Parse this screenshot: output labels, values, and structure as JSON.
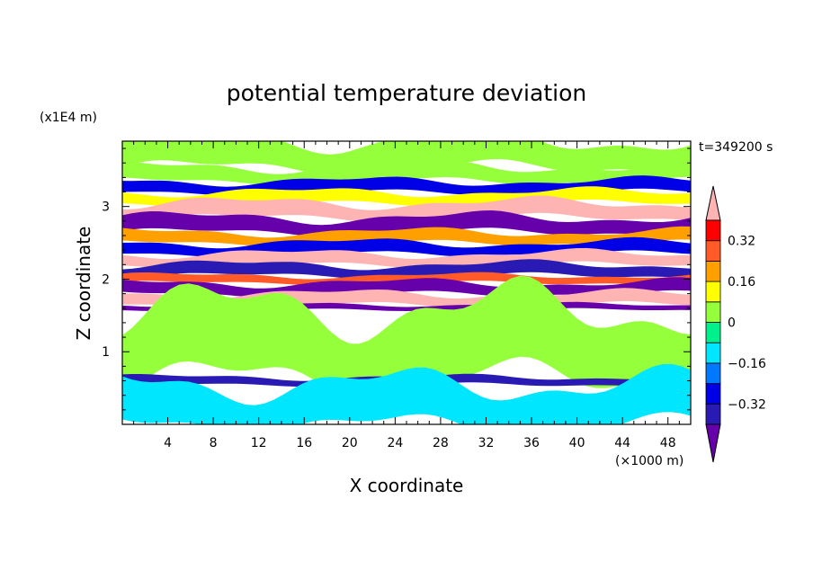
{
  "chart_data": {
    "type": "heatmap",
    "title": "potential temperature deviation",
    "xlabel": "X coordinate",
    "ylabel": "Z coordinate",
    "x_unit": "(×1000 m)",
    "y_unit": "(x1E4 m)",
    "time_label": "t=349200 s",
    "xlim": [
      0,
      50
    ],
    "ylim": [
      0,
      3.9
    ],
    "x_ticks": [
      "4",
      "8",
      "12",
      "16",
      "20",
      "24",
      "28",
      "32",
      "36",
      "40",
      "44",
      "48"
    ],
    "x_tick_values": [
      4,
      8,
      12,
      16,
      20,
      24,
      28,
      32,
      36,
      40,
      44,
      48
    ],
    "y_ticks": [
      "1",
      "2",
      "3"
    ],
    "y_tick_values": [
      1,
      2,
      3
    ],
    "colorbar": {
      "labels": [
        "0.32",
        "0.16",
        "0",
        "−0.16",
        "−0.32"
      ],
      "label_values": [
        0.32,
        0.16,
        0,
        -0.16,
        -0.32
      ],
      "levels": [
        -0.4,
        -0.32,
        -0.24,
        -0.16,
        -0.08,
        0,
        0.08,
        0.16,
        0.24,
        0.32,
        0.4
      ],
      "colors": [
        "#6600aa",
        "#2a1ab4",
        "#0000e6",
        "#0078ff",
        "#00e6ff",
        "#00f08c",
        "#96ff3c",
        "#ffff00",
        "#ffa000",
        "#ff5a28",
        "#ff0000",
        "#ffb4b4"
      ]
    },
    "bands": [
      {
        "z": [
          3.55,
          3.9
        ],
        "value": 0.02
      },
      {
        "z": [
          3.35,
          3.55
        ],
        "value": 0.0
      },
      {
        "z": [
          3.2,
          3.35
        ],
        "value": -0.3
      },
      {
        "z": [
          3.05,
          3.2
        ],
        "value": 0.1
      },
      {
        "z": [
          2.85,
          3.05
        ],
        "value": 0.45
      },
      {
        "z": [
          2.65,
          2.85
        ],
        "value": -0.45
      },
      {
        "z": [
          2.5,
          2.65
        ],
        "value": 0.2
      },
      {
        "z": [
          2.35,
          2.5
        ],
        "value": -0.3
      },
      {
        "z": [
          2.2,
          2.35
        ],
        "value": 0.45
      },
      {
        "z": [
          2.05,
          2.2
        ],
        "value": -0.4
      },
      {
        "z": [
          1.95,
          2.05
        ],
        "value": 0.28
      },
      {
        "z": [
          1.8,
          1.95
        ],
        "value": -0.45
      },
      {
        "z": [
          1.65,
          1.8
        ],
        "value": 0.45
      },
      {
        "z": [
          1.58,
          1.65
        ],
        "value": -0.45
      },
      {
        "z": [
          0.65,
          1.58
        ],
        "value": 0.05
      },
      {
        "z": [
          0.55,
          0.65
        ],
        "value": -0.4
      },
      {
        "z": [
          0.0,
          0.55
        ],
        "value": -0.1
      }
    ]
  }
}
